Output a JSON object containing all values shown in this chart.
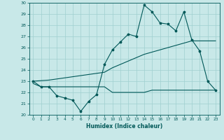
{
  "xlabel": "Humidex (Indice chaleur)",
  "ylabel": "",
  "xlim": [
    -0.5,
    23.5
  ],
  "ylim": [
    20,
    30
  ],
  "yticks": [
    20,
    21,
    22,
    23,
    24,
    25,
    26,
    27,
    28,
    29,
    30
  ],
  "xticks": [
    0,
    1,
    2,
    3,
    4,
    5,
    6,
    7,
    8,
    9,
    10,
    11,
    12,
    13,
    14,
    15,
    16,
    17,
    18,
    19,
    20,
    21,
    22,
    23
  ],
  "bg_color": "#c8e8e8",
  "grid_color": "#9fcfcf",
  "line_color": "#005858",
  "line1_x": [
    0,
    1,
    2,
    3,
    4,
    5,
    6,
    7,
    8,
    9,
    10,
    11,
    12,
    13,
    14,
    15,
    16,
    17,
    18,
    19,
    20,
    21,
    22,
    23
  ],
  "line1_y": [
    23.0,
    22.5,
    22.5,
    21.7,
    21.5,
    21.3,
    20.3,
    21.2,
    21.8,
    24.5,
    25.8,
    26.5,
    27.2,
    27.0,
    29.8,
    29.2,
    28.2,
    28.1,
    27.5,
    29.2,
    26.7,
    25.7,
    23.0,
    22.2
  ],
  "line2_x": [
    0,
    1,
    2,
    3,
    4,
    5,
    6,
    7,
    8,
    9,
    10,
    11,
    12,
    13,
    14,
    15,
    16,
    17,
    18,
    19,
    20,
    21,
    22,
    23
  ],
  "line2_y": [
    23.0,
    23.05,
    23.1,
    23.2,
    23.3,
    23.4,
    23.5,
    23.6,
    23.7,
    23.8,
    24.2,
    24.5,
    24.8,
    25.1,
    25.4,
    25.6,
    25.8,
    26.0,
    26.2,
    26.4,
    26.6,
    26.6,
    26.6,
    26.6
  ],
  "line3_x": [
    0,
    1,
    2,
    3,
    4,
    5,
    6,
    7,
    8,
    9,
    10,
    11,
    12,
    13,
    14,
    15,
    16,
    17,
    18,
    19,
    20,
    21,
    22,
    23
  ],
  "line3_y": [
    22.8,
    22.5,
    22.5,
    22.5,
    22.5,
    22.5,
    22.5,
    22.5,
    22.5,
    22.5,
    22.0,
    22.0,
    22.0,
    22.0,
    22.0,
    22.2,
    22.2,
    22.2,
    22.2,
    22.2,
    22.2,
    22.2,
    22.2,
    22.2
  ],
  "lw": 0.8,
  "marker_size": 2.5
}
